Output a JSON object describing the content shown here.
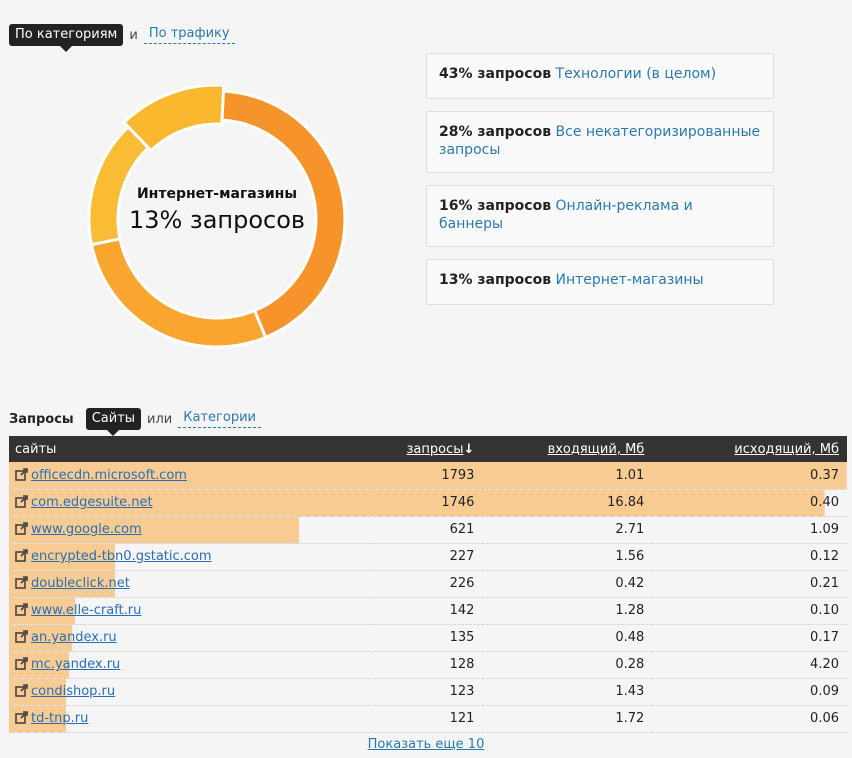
{
  "toggle": {
    "active": "По категориям",
    "sep": "и",
    "other": "По трафику"
  },
  "donut": {
    "center_category": "Интернет-магазины",
    "center_value": "13% запросов",
    "segments": [
      {
        "percent": 43,
        "color": "#f7932b"
      },
      {
        "percent": 28,
        "color": "#f9a52f"
      },
      {
        "percent": 16,
        "color": "#fbbc35"
      },
      {
        "percent": 13,
        "color": "#fbb72e"
      }
    ]
  },
  "categories": [
    {
      "pct": "43% запросов",
      "name": "Технологии (в целом)"
    },
    {
      "pct": "28% запросов",
      "name": "Все некатегоризированные запросы"
    },
    {
      "pct": "16% запросов",
      "name": "Онлайн-реклама и баннеры"
    },
    {
      "pct": "13% запросов",
      "name": "Интернет-магазины"
    }
  ],
  "requests": {
    "title": "Запросы",
    "active": "Сайты",
    "sep": "или",
    "other": "Категории"
  },
  "table": {
    "headers": {
      "site": "сайты",
      "requests": "запросы",
      "sort_icon": "↓",
      "incoming": "входящий, Мб",
      "outgoing": "исходящий, Мб"
    },
    "bar_color": "#f8cb93",
    "max_requests": 1793,
    "rows": [
      {
        "site": "officecdn.microsoft.com",
        "requests": "1793",
        "incoming": "1.01",
        "outgoing": "0.37",
        "value": 1793
      },
      {
        "site": "com.edgesuite.net",
        "requests": "1746",
        "incoming": "16.84",
        "outgoing": "0.40",
        "value": 1746
      },
      {
        "site": "www.google.com",
        "requests": "621",
        "incoming": "2.71",
        "outgoing": "1.09",
        "value": 621
      },
      {
        "site": "encrypted-tbn0.gstatic.com",
        "requests": "227",
        "incoming": "1.56",
        "outgoing": "0.12",
        "value": 227
      },
      {
        "site": "doubleclick.net",
        "requests": "226",
        "incoming": "0.42",
        "outgoing": "0.21",
        "value": 226
      },
      {
        "site": "www.elle-craft.ru",
        "requests": "142",
        "incoming": "1.28",
        "outgoing": "0.10",
        "value": 142
      },
      {
        "site": "an.yandex.ru",
        "requests": "135",
        "incoming": "0.48",
        "outgoing": "0.17",
        "value": 135
      },
      {
        "site": "mc.yandex.ru",
        "requests": "128",
        "incoming": "0.28",
        "outgoing": "4.20",
        "value": 128
      },
      {
        "site": "condishop.ru",
        "requests": "123",
        "incoming": "1.43",
        "outgoing": "0.09",
        "value": 123
      },
      {
        "site": "td-tnp.ru",
        "requests": "121",
        "incoming": "1.72",
        "outgoing": "0.06",
        "value": 121
      }
    ]
  },
  "show_more": "Показать еще 10"
}
